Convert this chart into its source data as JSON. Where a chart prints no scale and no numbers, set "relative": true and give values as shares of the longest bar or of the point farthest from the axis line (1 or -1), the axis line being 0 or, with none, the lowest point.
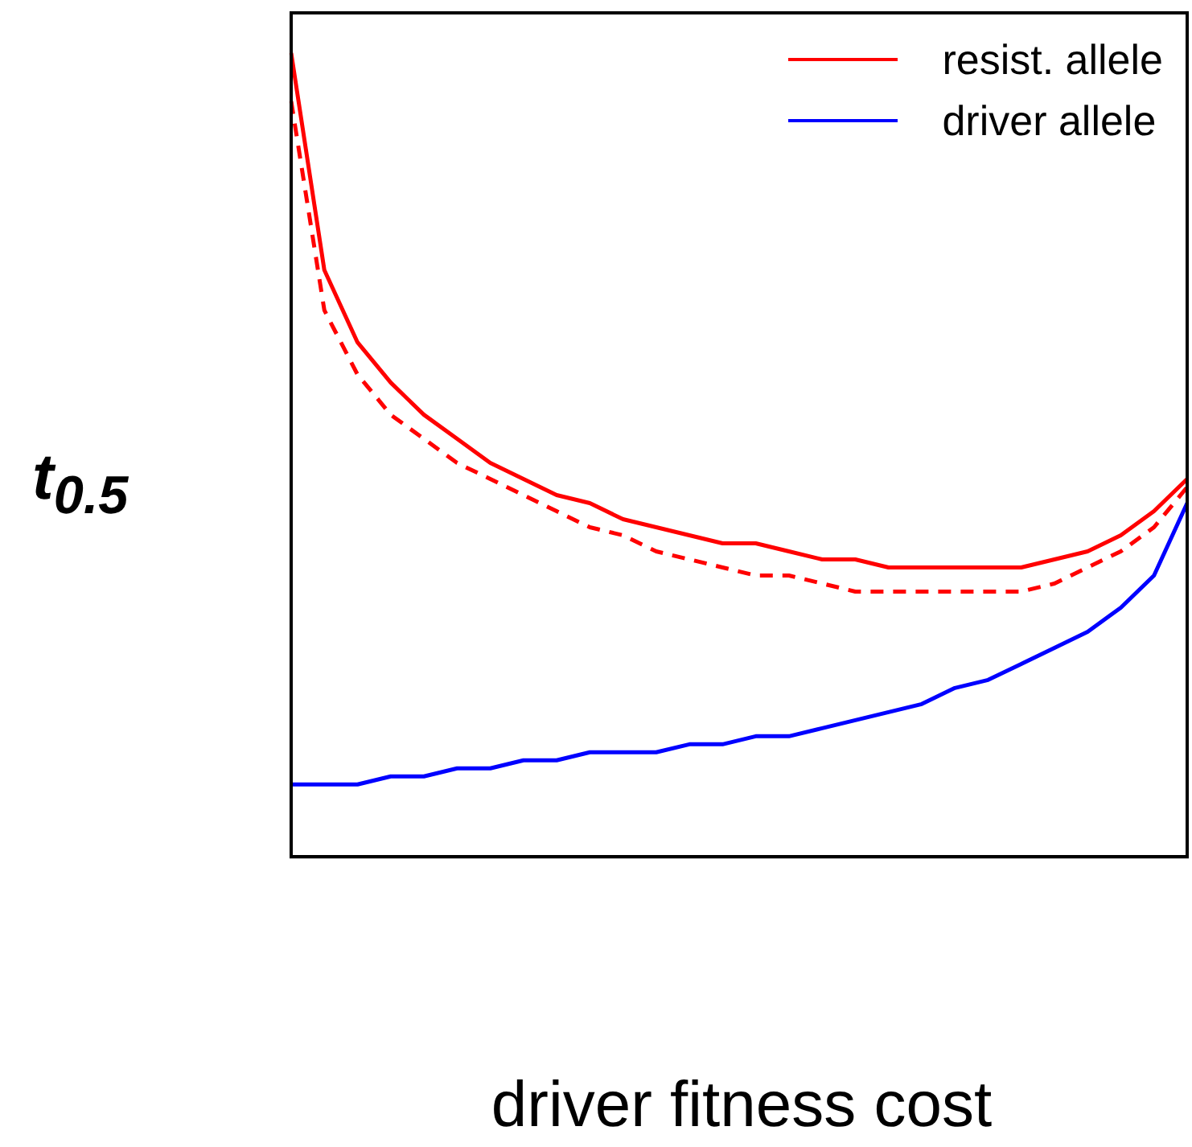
{
  "chart_data": {
    "type": "line",
    "xlabel": "driver fitness cost",
    "ylabel": "t$_{0.5}$",
    "relative": true,
    "legend": "top right",
    "grid": false,
    "marker": "none",
    "categories": [
      null,
      null,
      null,
      null,
      null,
      null,
      null,
      null,
      null,
      null,
      null,
      null,
      null,
      null,
      null,
      null,
      null,
      null,
      null,
      null,
      null,
      null,
      null,
      null,
      null,
      null,
      null,
      null
    ],
    "series": [
      {
        "name": "resist. allele",
        "color": "#ff0000",
        "line_style": "solid",
        "values": [
          1,
          0.73,
          0.64,
          0.59,
          0.55,
          0.52,
          0.49,
          0.47,
          0.45,
          0.44,
          0.42,
          0.41,
          0.4,
          0.39,
          0.39,
          0.38,
          0.37,
          0.37,
          0.36,
          0.36,
          0.36,
          0.36,
          0.36,
          0.37,
          0.38,
          0.4,
          0.43,
          0.47
        ]
      },
      {
        "color": "#ff0000",
        "line_style": "dashed",
        "values": [
          0.94,
          0.68,
          0.6,
          0.55,
          0.52,
          0.49,
          0.47,
          0.45,
          0.43,
          0.41,
          0.4,
          0.38,
          0.37,
          0.36,
          0.35,
          0.35,
          0.34,
          0.33,
          0.33,
          0.33,
          0.33,
          0.33,
          0.33,
          0.34,
          0.36,
          0.38,
          0.41,
          0.46
        ]
      },
      {
        "name": "driver allele",
        "color": "#0000ff",
        "line_style": "solid",
        "values": [
          0.09,
          0.09,
          0.09,
          0.1,
          0.1,
          0.11,
          0.11,
          0.12,
          0.12,
          0.13,
          0.13,
          0.13,
          0.14,
          0.14,
          0.15,
          0.15,
          0.16,
          0.17,
          0.18,
          0.19,
          0.21,
          0.22,
          0.24,
          0.26,
          0.28,
          0.31,
          0.35,
          0.44
        ]
      }
    ]
  }
}
